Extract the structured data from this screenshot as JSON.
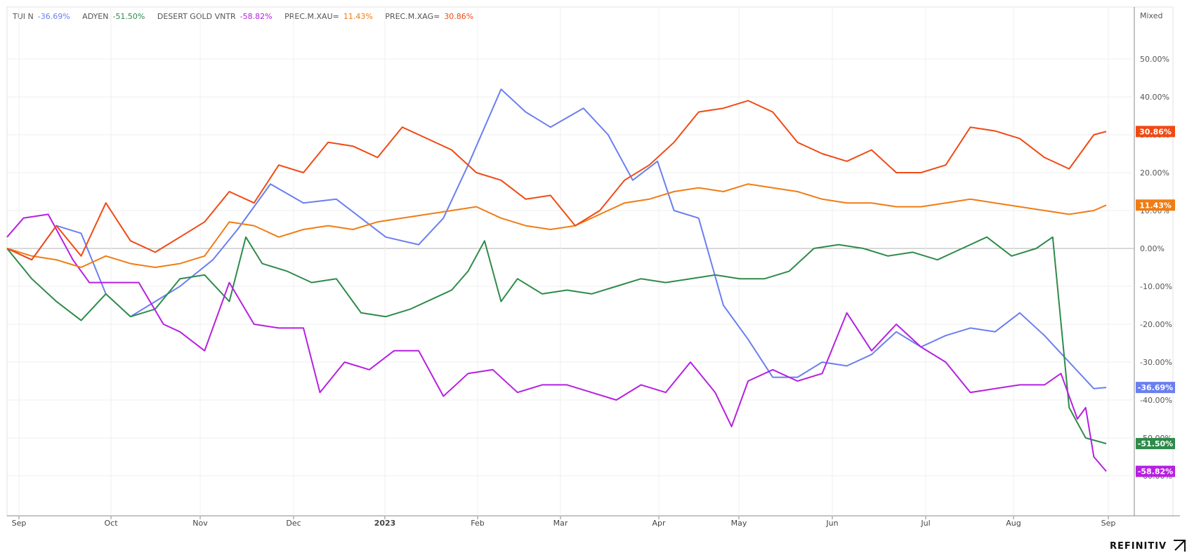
{
  "brand": "REFINITIV",
  "scale_label": "Mixed",
  "chart_data": {
    "type": "line",
    "xticks": [
      "Sep",
      "Oct",
      "Nov",
      "Dec",
      "2023",
      "Feb",
      "Mar",
      "Apr",
      "May",
      "Jun",
      "Jul",
      "Aug",
      "Sep"
    ],
    "yticks": [
      "50.00%",
      "40.00%",
      "30.00%",
      "20.00%",
      "10.00%",
      "0.00%",
      "-10.00%",
      "-20.00%",
      "-30.00%",
      "-40.00%",
      "-50.00%",
      "-60.00%"
    ],
    "ylim": [
      -65,
      62
    ],
    "grid": true,
    "legend_position": "top-left",
    "series": [
      {
        "name": "TUI N",
        "last": "-36.69%",
        "color": "#6a7ff0",
        "points": [
          [
            0,
            0
          ],
          [
            0.03,
            -3
          ],
          [
            0.06,
            6
          ],
          [
            0.09,
            4
          ],
          [
            0.12,
            -12
          ],
          [
            0.15,
            -18
          ],
          [
            0.18,
            -14
          ],
          [
            0.21,
            -10
          ],
          [
            0.25,
            -3
          ],
          [
            0.28,
            5
          ],
          [
            0.32,
            17
          ],
          [
            0.36,
            12
          ],
          [
            0.4,
            13
          ],
          [
            0.43,
            8
          ],
          [
            0.46,
            3
          ],
          [
            0.5,
            1
          ],
          [
            0.53,
            8
          ],
          [
            0.56,
            22
          ],
          [
            0.6,
            42
          ],
          [
            0.63,
            36
          ],
          [
            0.66,
            32
          ],
          [
            0.7,
            37
          ],
          [
            0.73,
            30
          ],
          [
            0.76,
            18
          ],
          [
            0.79,
            23
          ],
          [
            0.81,
            10
          ],
          [
            0.84,
            8
          ],
          [
            0.87,
            -15
          ],
          [
            0.9,
            -24
          ],
          [
            0.93,
            -34
          ],
          [
            0.96,
            -34
          ],
          [
            0.99,
            -30
          ],
          [
            1.02,
            -31
          ],
          [
            1.05,
            -28
          ],
          [
            1.08,
            -22
          ],
          [
            1.11,
            -26
          ],
          [
            1.14,
            -23
          ],
          [
            1.17,
            -21
          ],
          [
            1.2,
            -22
          ],
          [
            1.23,
            -17
          ],
          [
            1.26,
            -23
          ],
          [
            1.29,
            -30
          ],
          [
            1.32,
            -37
          ],
          [
            1.335,
            -36.69
          ]
        ]
      },
      {
        "name": "ADYEN",
        "last": "-51.50%",
        "color": "#2e8b4a",
        "points": [
          [
            0,
            0
          ],
          [
            0.03,
            -8
          ],
          [
            0.06,
            -14
          ],
          [
            0.09,
            -19
          ],
          [
            0.12,
            -12
          ],
          [
            0.15,
            -18
          ],
          [
            0.18,
            -16
          ],
          [
            0.21,
            -8
          ],
          [
            0.24,
            -7
          ],
          [
            0.27,
            -14
          ],
          [
            0.29,
            3
          ],
          [
            0.31,
            -4
          ],
          [
            0.34,
            -6
          ],
          [
            0.37,
            -9
          ],
          [
            0.4,
            -8
          ],
          [
            0.43,
            -17
          ],
          [
            0.46,
            -18
          ],
          [
            0.49,
            -16
          ],
          [
            0.52,
            -13
          ],
          [
            0.54,
            -11
          ],
          [
            0.56,
            -6
          ],
          [
            0.58,
            2
          ],
          [
            0.6,
            -14
          ],
          [
            0.62,
            -8
          ],
          [
            0.65,
            -12
          ],
          [
            0.68,
            -11
          ],
          [
            0.71,
            -12
          ],
          [
            0.74,
            -10
          ],
          [
            0.77,
            -8
          ],
          [
            0.8,
            -9
          ],
          [
            0.83,
            -8
          ],
          [
            0.86,
            -7
          ],
          [
            0.89,
            -8
          ],
          [
            0.92,
            -8
          ],
          [
            0.95,
            -6
          ],
          [
            0.98,
            0
          ],
          [
            1.01,
            1
          ],
          [
            1.04,
            0
          ],
          [
            1.07,
            -2
          ],
          [
            1.1,
            -1
          ],
          [
            1.13,
            -3
          ],
          [
            1.16,
            0
          ],
          [
            1.19,
            3
          ],
          [
            1.22,
            -2
          ],
          [
            1.25,
            0
          ],
          [
            1.27,
            3
          ],
          [
            1.29,
            -42
          ],
          [
            1.31,
            -50
          ],
          [
            1.335,
            -51.5
          ]
        ]
      },
      {
        "name": "DESERT GOLD VNTR",
        "last": "-58.82%",
        "color": "#b620e0",
        "points": [
          [
            0,
            3
          ],
          [
            0.02,
            8
          ],
          [
            0.05,
            9
          ],
          [
            0.08,
            -3
          ],
          [
            0.1,
            -9
          ],
          [
            0.13,
            -9
          ],
          [
            0.16,
            -9
          ],
          [
            0.19,
            -20
          ],
          [
            0.21,
            -22
          ],
          [
            0.24,
            -27
          ],
          [
            0.27,
            -9
          ],
          [
            0.3,
            -20
          ],
          [
            0.33,
            -21
          ],
          [
            0.36,
            -21
          ],
          [
            0.38,
            -38
          ],
          [
            0.41,
            -30
          ],
          [
            0.44,
            -32
          ],
          [
            0.47,
            -27
          ],
          [
            0.5,
            -27
          ],
          [
            0.53,
            -39
          ],
          [
            0.56,
            -33
          ],
          [
            0.59,
            -32
          ],
          [
            0.62,
            -38
          ],
          [
            0.65,
            -36
          ],
          [
            0.68,
            -36
          ],
          [
            0.71,
            -38
          ],
          [
            0.74,
            -40
          ],
          [
            0.77,
            -36
          ],
          [
            0.8,
            -38
          ],
          [
            0.83,
            -30
          ],
          [
            0.86,
            -38
          ],
          [
            0.88,
            -47
          ],
          [
            0.9,
            -35
          ],
          [
            0.93,
            -32
          ],
          [
            0.96,
            -35
          ],
          [
            0.99,
            -33
          ],
          [
            1.02,
            -17
          ],
          [
            1.05,
            -27
          ],
          [
            1.08,
            -20
          ],
          [
            1.11,
            -26
          ],
          [
            1.14,
            -30
          ],
          [
            1.17,
            -38
          ],
          [
            1.2,
            -37
          ],
          [
            1.23,
            -36
          ],
          [
            1.26,
            -36
          ],
          [
            1.28,
            -33
          ],
          [
            1.3,
            -45
          ],
          [
            1.31,
            -42
          ],
          [
            1.32,
            -55
          ],
          [
            1.335,
            -58.82
          ]
        ]
      },
      {
        "name": "PREC.M.XAU=",
        "last": "11.43%",
        "color": "#f07c14",
        "points": [
          [
            0,
            0
          ],
          [
            0.03,
            -2
          ],
          [
            0.06,
            -3
          ],
          [
            0.09,
            -5
          ],
          [
            0.12,
            -2
          ],
          [
            0.15,
            -4
          ],
          [
            0.18,
            -5
          ],
          [
            0.21,
            -4
          ],
          [
            0.24,
            -2
          ],
          [
            0.27,
            7
          ],
          [
            0.3,
            6
          ],
          [
            0.33,
            3
          ],
          [
            0.36,
            5
          ],
          [
            0.39,
            6
          ],
          [
            0.42,
            5
          ],
          [
            0.45,
            7
          ],
          [
            0.48,
            8
          ],
          [
            0.51,
            9
          ],
          [
            0.54,
            10
          ],
          [
            0.57,
            11
          ],
          [
            0.6,
            8
          ],
          [
            0.63,
            6
          ],
          [
            0.66,
            5
          ],
          [
            0.69,
            6
          ],
          [
            0.72,
            9
          ],
          [
            0.75,
            12
          ],
          [
            0.78,
            13
          ],
          [
            0.81,
            15
          ],
          [
            0.84,
            16
          ],
          [
            0.87,
            15
          ],
          [
            0.9,
            17
          ],
          [
            0.93,
            16
          ],
          [
            0.96,
            15
          ],
          [
            0.99,
            13
          ],
          [
            1.02,
            12
          ],
          [
            1.05,
            12
          ],
          [
            1.08,
            11
          ],
          [
            1.11,
            11
          ],
          [
            1.14,
            12
          ],
          [
            1.17,
            13
          ],
          [
            1.2,
            12
          ],
          [
            1.23,
            11
          ],
          [
            1.26,
            10
          ],
          [
            1.29,
            9
          ],
          [
            1.32,
            10
          ],
          [
            1.335,
            11.43
          ]
        ]
      },
      {
        "name": "PREC.M.XAG=",
        "last": "30.86%",
        "color": "#f04a14",
        "points": [
          [
            0,
            0
          ],
          [
            0.03,
            -3
          ],
          [
            0.06,
            6
          ],
          [
            0.09,
            -2
          ],
          [
            0.12,
            12
          ],
          [
            0.15,
            2
          ],
          [
            0.18,
            -1
          ],
          [
            0.21,
            3
          ],
          [
            0.24,
            7
          ],
          [
            0.27,
            15
          ],
          [
            0.3,
            12
          ],
          [
            0.33,
            22
          ],
          [
            0.36,
            20
          ],
          [
            0.39,
            28
          ],
          [
            0.42,
            27
          ],
          [
            0.45,
            24
          ],
          [
            0.48,
            32
          ],
          [
            0.51,
            29
          ],
          [
            0.54,
            26
          ],
          [
            0.57,
            20
          ],
          [
            0.6,
            18
          ],
          [
            0.63,
            13
          ],
          [
            0.66,
            14
          ],
          [
            0.69,
            6
          ],
          [
            0.72,
            10
          ],
          [
            0.75,
            18
          ],
          [
            0.78,
            22
          ],
          [
            0.81,
            28
          ],
          [
            0.84,
            36
          ],
          [
            0.87,
            37
          ],
          [
            0.9,
            39
          ],
          [
            0.93,
            36
          ],
          [
            0.96,
            28
          ],
          [
            0.99,
            25
          ],
          [
            1.02,
            23
          ],
          [
            1.05,
            26
          ],
          [
            1.08,
            20
          ],
          [
            1.11,
            20
          ],
          [
            1.14,
            22
          ],
          [
            1.17,
            32
          ],
          [
            1.2,
            31
          ],
          [
            1.23,
            29
          ],
          [
            1.26,
            24
          ],
          [
            1.29,
            21
          ],
          [
            1.32,
            30
          ],
          [
            1.335,
            30.86
          ]
        ]
      }
    ]
  }
}
